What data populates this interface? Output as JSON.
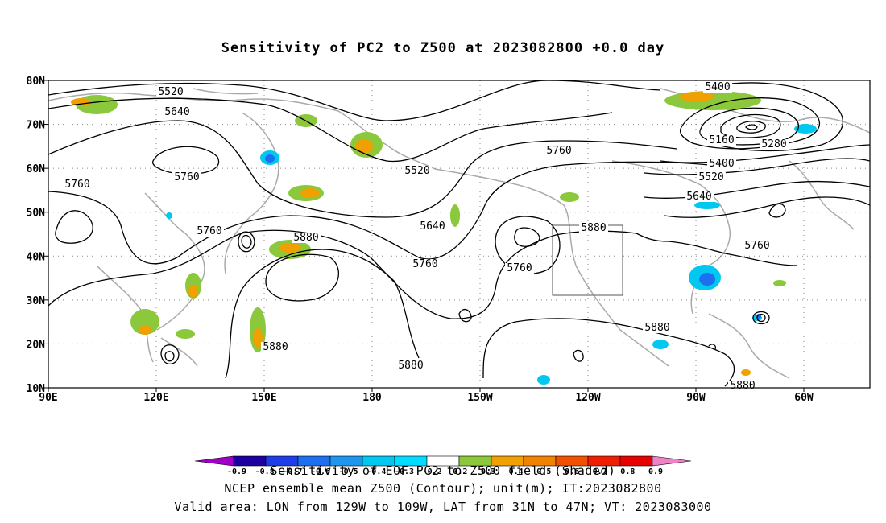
{
  "title": "Sensitivity of PC2 to Z500 at 2023082800 +0.0 day",
  "map": {
    "lat_labels": [
      "80N",
      "70N",
      "60N",
      "50N",
      "40N",
      "30N",
      "20N",
      "10N"
    ],
    "lon_labels": [
      "90E",
      "120E",
      "150E",
      "180",
      "150W",
      "120W",
      "90W",
      "60W"
    ],
    "grid": "dotted",
    "valid_box": {
      "lon_from": "129W",
      "lon_to": "109W",
      "lat_from": "31N",
      "lat_to": "47N"
    },
    "contour_labels": [
      "5520",
      "5640",
      "5760",
      "5760",
      "5760",
      "5520",
      "5640",
      "5760",
      "5880",
      "5880",
      "5880",
      "5760",
      "5880",
      "5760",
      "5400",
      "5160",
      "5280",
      "5400",
      "5520",
      "5640",
      "5760",
      "5880",
      "5880"
    ],
    "colors": {
      "contour": "#000000",
      "coast": "#aaaaaa",
      "grid": "#888888"
    }
  },
  "colorbar": {
    "levels": [
      "-0.9",
      "-0.8",
      "-0.7",
      "-0.6",
      "-0.5",
      "-0.4",
      "-0.3",
      "-0.2",
      "0.2",
      "0.3",
      "0.4",
      "0.5",
      "0.6",
      "0.7",
      "0.8",
      "0.9"
    ],
    "colors": [
      "#a000c8",
      "#1e00a0",
      "#1e3ce8",
      "#1e6ef0",
      "#1e96f0",
      "#00c8f0",
      "#00dcff",
      "#ffffff",
      "#8cc83c",
      "#f0a000",
      "#f08200",
      "#f05000",
      "#f01e00",
      "#e60000",
      "#f082c8"
    ]
  },
  "captions": {
    "line1": "Sensitivity of EOF PC2 to Z500 field (Shaded)",
    "line2": "NCEP ensemble mean Z500 (Contour); unit(m); IT:2023082800",
    "line3": "Valid area: LON from 129W to 109W, LAT from 31N to 47N; VT: 2023083000"
  }
}
